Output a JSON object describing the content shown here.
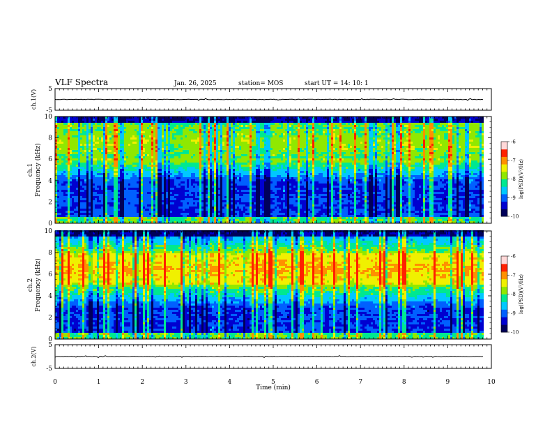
{
  "header": {
    "title": "VLF Spectra",
    "date": "Jan. 26, 2025",
    "station": "station= MOS",
    "start_ut": "start  UT =   14: 10: 1"
  },
  "chart_data": [
    {
      "type": "line",
      "panel": "ch1-waveform",
      "ylabel": "ch.1(V)",
      "ylim": [
        -5,
        5
      ],
      "yticks": [
        5,
        -5
      ],
      "xlim": [
        0,
        10
      ],
      "trace_level": 0,
      "trace_end": 9.83
    },
    {
      "type": "heatmap",
      "panel": "ch1-spectrogram",
      "ylabel": "ch.1 Frequency (kHz)",
      "ylim": [
        0,
        10
      ],
      "yticks": [
        0,
        2,
        4,
        6,
        8,
        10
      ],
      "xlim": [
        0,
        10
      ],
      "data_end": 9.83,
      "dominant_band_khz": [
        6,
        9
      ],
      "colorbar": {
        "label": "log(PSD)(V²/Hz)",
        "range": [
          -10,
          -6
        ],
        "ticks": [
          -6,
          -7,
          -8,
          -9,
          -10
        ]
      }
    },
    {
      "type": "heatmap",
      "panel": "ch2-spectrogram",
      "ylabel": "ch.2 Frequency (kHz)",
      "ylim": [
        0,
        10
      ],
      "yticks": [
        0,
        2,
        4,
        6,
        8,
        10
      ],
      "xlim": [
        0,
        10
      ],
      "data_end": 9.83,
      "dominant_band_khz": [
        5,
        8
      ],
      "colorbar": {
        "label": "log(PSD)(V²/Hz)",
        "range": [
          -10,
          -6
        ],
        "ticks": [
          -6,
          -7,
          -8,
          -9,
          -10
        ]
      }
    },
    {
      "type": "line",
      "panel": "ch2-waveform",
      "ylabel": "ch.2(V)",
      "ylim": [
        -5,
        5
      ],
      "yticks": [
        5,
        -5
      ],
      "xlim": [
        0,
        10
      ],
      "trace_level": 0,
      "trace_end": 9.83
    }
  ],
  "xaxis": {
    "label": "Time (min)",
    "ticks": [
      0,
      1,
      2,
      3,
      4,
      5,
      6,
      7,
      8,
      9,
      10
    ]
  },
  "colors": {
    "colormap": [
      "#00005a",
      "#0000d0",
      "#0060ff",
      "#00c8ff",
      "#00e890",
      "#90e800",
      "#f0f000",
      "#ff9000",
      "#ff2000",
      "#ffd8d8"
    ]
  }
}
